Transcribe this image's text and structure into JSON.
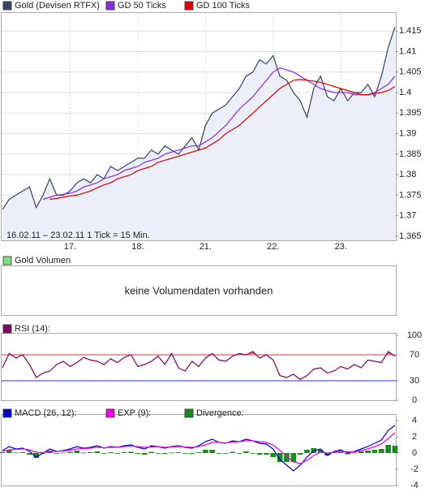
{
  "chart_data": [
    {
      "type": "line",
      "categories": [
        null,
        null,
        null,
        null,
        null,
        null,
        null,
        null,
        null,
        null,
        "17.",
        null,
        null,
        null,
        null,
        null,
        null,
        null,
        null,
        null,
        "18.",
        null,
        null,
        null,
        null,
        null,
        null,
        null,
        null,
        null,
        "21.",
        null,
        null,
        null,
        null,
        null,
        null,
        null,
        null,
        null,
        "22.",
        null,
        null,
        null,
        null,
        null,
        null,
        null,
        null,
        null,
        "23.",
        null,
        null,
        null,
        null,
        null,
        null,
        null,
        null
      ],
      "series": [
        {
          "name": "Gold (Devisen RTFX)",
          "color": "#34435f",
          "fill": "#eceffa",
          "values": [
            1.3715,
            1.374,
            1.375,
            1.376,
            1.377,
            1.372,
            1.375,
            1.379,
            1.375,
            1.375,
            1.376,
            1.378,
            1.379,
            1.378,
            1.38,
            1.379,
            1.382,
            1.381,
            1.382,
            1.383,
            1.384,
            1.384,
            1.386,
            1.385,
            1.387,
            1.386,
            1.385,
            1.387,
            1.389,
            1.386,
            1.392,
            1.395,
            1.396,
            1.397,
            1.399,
            1.401,
            1.404,
            1.405,
            1.408,
            1.407,
            1.409,
            1.404,
            1.403,
            1.4,
            1.398,
            1.394,
            1.401,
            1.404,
            1.399,
            1.398,
            1.401,
            1.398,
            1.4,
            1.4,
            1.402,
            1.399,
            1.404,
            1.411,
            1.416
          ]
        },
        {
          "name": "GD 50 Ticks",
          "color": "#8a2be2",
          "values": [
            null,
            null,
            null,
            null,
            null,
            null,
            1.374,
            1.3745,
            1.375,
            1.3752,
            1.3755,
            1.376,
            1.377,
            1.3775,
            1.378,
            1.379,
            1.3795,
            1.38,
            1.381,
            1.3815,
            1.382,
            1.383,
            1.3835,
            1.384,
            1.385,
            1.3855,
            1.386,
            1.3865,
            1.387,
            1.387,
            1.388,
            1.389,
            1.3905,
            1.392,
            1.394,
            1.396,
            1.3975,
            1.399,
            1.401,
            1.403,
            1.405,
            1.406,
            1.4055,
            1.405,
            1.404,
            1.403,
            1.402,
            1.401,
            1.4005,
            1.4,
            1.4,
            1.4,
            1.3995,
            1.3995,
            1.3995,
            1.4,
            1.401,
            1.402,
            1.404
          ]
        },
        {
          "name": "GD 100 Ticks",
          "color": "#e00000",
          "values": [
            null,
            null,
            null,
            null,
            null,
            null,
            null,
            1.374,
            1.3742,
            1.3745,
            1.3748,
            1.375,
            1.3755,
            1.376,
            1.3768,
            1.3775,
            1.378,
            1.379,
            1.3795,
            1.38,
            1.381,
            1.3815,
            1.382,
            1.383,
            1.3835,
            1.384,
            1.3845,
            1.385,
            1.3855,
            1.386,
            1.3865,
            1.3875,
            1.3885,
            1.39,
            1.391,
            1.392,
            1.3935,
            1.395,
            1.3965,
            1.398,
            1.3995,
            1.401,
            1.402,
            1.403,
            1.4032,
            1.403,
            1.4028,
            1.4025,
            1.402,
            1.4015,
            1.401,
            1.4005,
            1.4,
            1.3995,
            1.3995,
            1.3998,
            1.4,
            1.4005,
            1.4015
          ]
        }
      ],
      "ylim": [
        1.364,
        1.419
      ],
      "yticks": [
        1.365,
        1.37,
        1.375,
        1.38,
        1.385,
        1.39,
        1.395,
        1.4,
        1.405,
        1.41,
        1.415
      ],
      "grid": true,
      "annotation": "16.02.11 – 23.02.11   1 Tick = 15 Min."
    },
    {
      "type": "empty",
      "title": "Gold Volumen",
      "color": "#7fdc7f",
      "annotation": "keine Volumendaten vorhanden"
    },
    {
      "type": "line",
      "series": [
        {
          "name": "RSI (14):",
          "color": "#800060",
          "fill": "#f07878",
          "values": [
            50,
            72,
            65,
            70,
            55,
            35,
            42,
            45,
            55,
            60,
            52,
            58,
            66,
            62,
            60,
            55,
            64,
            58,
            66,
            70,
            52,
            55,
            60,
            68,
            55,
            72,
            50,
            45,
            60,
            52,
            65,
            72,
            62,
            60,
            68,
            72,
            70,
            75,
            65,
            70,
            62,
            38,
            35,
            40,
            32,
            38,
            48,
            50,
            42,
            45,
            52,
            48,
            55,
            50,
            62,
            60,
            58,
            75,
            68
          ]
        }
      ],
      "ylim": [
        0,
        100
      ],
      "yticks": [
        0,
        30,
        70,
        100
      ],
      "reference_lines": [
        {
          "value": 70,
          "color": "#e03030"
        },
        {
          "value": 30,
          "color": "#3030e0"
        }
      ]
    },
    {
      "type": "line",
      "series": [
        {
          "name": "MACD (26, 12):",
          "color": "#0000cc",
          "values": [
            0.3,
            0.8,
            0.5,
            0.6,
            0.2,
            -0.5,
            0,
            0.5,
            0.2,
            0.3,
            0.5,
            0.8,
            0.6,
            0.7,
            0.9,
            0.6,
            0.8,
            0.7,
            0.9,
            1,
            0.7,
            0.5,
            0.9,
            0.8,
            0.6,
            0.8,
            0.9,
            0.7,
            0.6,
            0.9,
            1.4,
            1.7,
            1.3,
            1.2,
            1.5,
            1.4,
            1.7,
            1.5,
            1.2,
            1.1,
            0.5,
            -0.8,
            -1.5,
            -2.2,
            -1.5,
            -0.5,
            0.3,
            0.5,
            -0.3,
            0.2,
            0.4,
            0,
            0.2,
            0.5,
            0.8,
            1.2,
            1.6,
            2.8,
            3.4
          ]
        },
        {
          "name": "EXP (9):",
          "color": "#ee00ee",
          "values": [
            0.2,
            0.4,
            0.45,
            0.5,
            0.4,
            0.1,
            0.05,
            0.2,
            0.2,
            0.25,
            0.35,
            0.5,
            0.55,
            0.6,
            0.7,
            0.65,
            0.7,
            0.7,
            0.8,
            0.85,
            0.8,
            0.7,
            0.75,
            0.8,
            0.7,
            0.75,
            0.8,
            0.75,
            0.7,
            0.8,
            1.0,
            1.3,
            1.3,
            1.25,
            1.35,
            1.4,
            1.5,
            1.5,
            1.4,
            1.3,
            1.0,
            0.3,
            -0.4,
            -1.1,
            -1.3,
            -0.9,
            -0.3,
            0.1,
            0,
            0.1,
            0.25,
            0.15,
            0.15,
            0.3,
            0.5,
            0.8,
            1.1,
            1.8,
            2.5
          ]
        },
        {
          "name": "Divergence:",
          "color": "#1a8a1a",
          "kind": "bar",
          "values": [
            0.1,
            0.4,
            0.05,
            0.1,
            -0.2,
            -0.6,
            -0.05,
            0.3,
            0,
            0.05,
            0.15,
            0.3,
            0.05,
            0.1,
            0.2,
            -0.05,
            0.1,
            0,
            0.1,
            0.15,
            -0.1,
            -0.2,
            0.15,
            0,
            -0.1,
            0.05,
            0.1,
            -0.05,
            -0.1,
            0.1,
            0.4,
            0.4,
            0,
            -0.05,
            0.15,
            0,
            0.2,
            0,
            -0.2,
            -0.2,
            -0.5,
            -1.1,
            -1.1,
            -1.1,
            -0.2,
            0.4,
            0.6,
            0.4,
            -0.3,
            0.1,
            0.15,
            -0.15,
            0.05,
            0.2,
            0.3,
            0.4,
            0.5,
            1.0,
            0.9
          ]
        }
      ],
      "ylim": [
        -4,
        4.5
      ],
      "yticks": [
        -4,
        -2,
        0,
        2,
        4
      ]
    }
  ]
}
